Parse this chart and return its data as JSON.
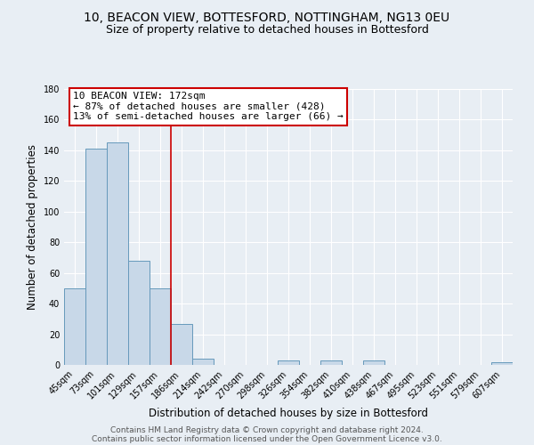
{
  "title1": "10, BEACON VIEW, BOTTESFORD, NOTTINGHAM, NG13 0EU",
  "title2": "Size of property relative to detached houses in Bottesford",
  "xlabel": "Distribution of detached houses by size in Bottesford",
  "ylabel": "Number of detached properties",
  "bar_labels": [
    "45sqm",
    "73sqm",
    "101sqm",
    "129sqm",
    "157sqm",
    "186sqm",
    "214sqm",
    "242sqm",
    "270sqm",
    "298sqm",
    "326sqm",
    "354sqm",
    "382sqm",
    "410sqm",
    "438sqm",
    "467sqm",
    "495sqm",
    "523sqm",
    "551sqm",
    "579sqm",
    "607sqm"
  ],
  "bar_values": [
    50,
    141,
    145,
    68,
    50,
    27,
    4,
    0,
    0,
    0,
    3,
    0,
    3,
    0,
    3,
    0,
    0,
    0,
    0,
    0,
    2
  ],
  "bar_color": "#c8d8e8",
  "bar_edge_color": "#6699bb",
  "ylim": [
    0,
    180
  ],
  "yticks": [
    0,
    20,
    40,
    60,
    80,
    100,
    120,
    140,
    160,
    180
  ],
  "annotation_title": "10 BEACON VIEW: 172sqm",
  "annotation_line1": "← 87% of detached houses are smaller (428)",
  "annotation_line2": "13% of semi-detached houses are larger (66) →",
  "annotation_box_color": "#ffffff",
  "annotation_box_edge": "#cc0000",
  "vline_color": "#cc0000",
  "footer1": "Contains HM Land Registry data © Crown copyright and database right 2024.",
  "footer2": "Contains public sector information licensed under the Open Government Licence v3.0.",
  "bg_color": "#e8eef4",
  "plot_bg_color": "#e8eef4",
  "title_fontsize": 10,
  "subtitle_fontsize": 9,
  "annotation_fontsize": 8,
  "footer_fontsize": 6.5,
  "axis_label_fontsize": 8.5,
  "tick_fontsize": 7,
  "vline_pos": 4.5
}
